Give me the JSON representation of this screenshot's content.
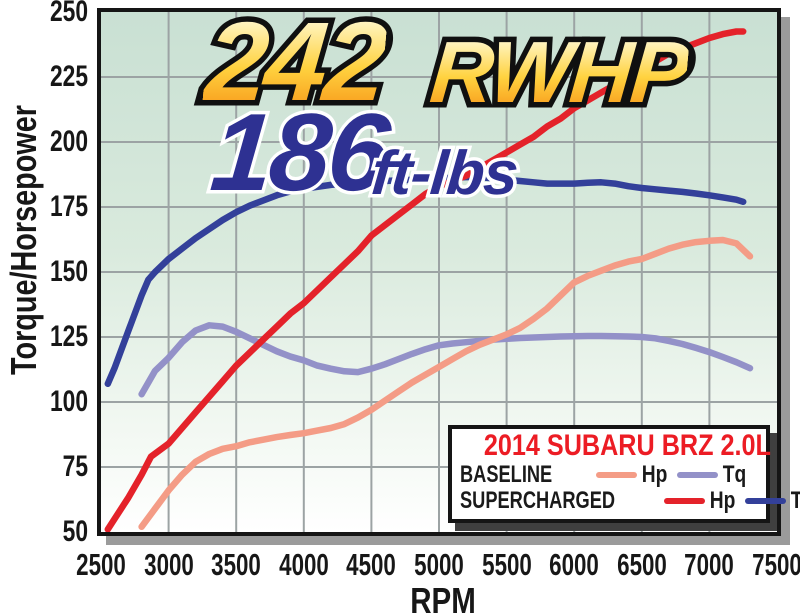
{
  "annotations": {
    "hp_value": "242",
    "hp_unit": "RWHP",
    "tq_value": "186",
    "tq_unit": "ft-lbs"
  },
  "axes": {
    "y_label": "Torque/Horsepower",
    "x_label": "RPM"
  },
  "legend": {
    "title": "2014 SUBARU BRZ 2.0L",
    "rows": [
      {
        "label": "BASELINE",
        "hp_label": "Hp",
        "tq_label": "Tq",
        "hp_series": "baseline_hp",
        "tq_series": "baseline_tq"
      },
      {
        "label": "SUPERCHARGED",
        "hp_label": "Hp",
        "tq_label": "Tq",
        "hp_series": "supercharged_hp",
        "tq_series": "supercharged_tq"
      }
    ]
  },
  "colors": {
    "baseline_hp": "#f49c86",
    "baseline_tq": "#9391c8",
    "supercharged_hp": "#e4222a",
    "supercharged_tq": "#33409a",
    "legend_title": "#ec1c24",
    "grid": "#9ca3a4",
    "plot_border": "#151515",
    "plot_shadow": "#9b9b9b",
    "plot_bg_top": "#c9e0d3",
    "plot_bg_bottom": "#ffffff",
    "hp_title_gradient": [
      "#fffdee",
      "#ffd23f",
      "#f7941d"
    ],
    "tq_title_color": "#2e3192"
  },
  "chart_data": {
    "type": "line",
    "title": "242 RWHP / 186 ft-lbs",
    "xlabel": "RPM",
    "ylabel": "Torque/Horsepower",
    "xlim": [
      2500,
      7500
    ],
    "ylim": [
      50,
      250
    ],
    "x_ticks": [
      2500,
      3000,
      3500,
      4000,
      4500,
      5000,
      5500,
      6000,
      6500,
      7000,
      7500
    ],
    "y_ticks": [
      50,
      75,
      100,
      125,
      150,
      175,
      200,
      225,
      250
    ],
    "x_gridlines": [
      3000,
      3500,
      4000,
      4500,
      5000,
      5500,
      6000,
      6500,
      7000
    ],
    "y_gridlines": [
      75,
      100,
      125,
      150,
      175,
      200,
      225
    ],
    "grid": true,
    "legend_position": "lower right",
    "annotations": [
      "242 RWHP",
      "186 ft-lbs"
    ],
    "series": [
      {
        "key": "baseline_tq",
        "name": "Baseline Tq",
        "points": [
          [
            2800,
            103
          ],
          [
            2900,
            112
          ],
          [
            3000,
            117
          ],
          [
            3100,
            123
          ],
          [
            3200,
            127.5
          ],
          [
            3300,
            129.5
          ],
          [
            3400,
            129
          ],
          [
            3500,
            127
          ],
          [
            3600,
            124.5
          ],
          [
            3700,
            122
          ],
          [
            3800,
            119.5
          ],
          [
            3900,
            117.5
          ],
          [
            4000,
            116
          ],
          [
            4100,
            114
          ],
          [
            4200,
            112.8
          ],
          [
            4300,
            111.8
          ],
          [
            4400,
            111.5
          ],
          [
            4500,
            112.8
          ],
          [
            4600,
            114.5
          ],
          [
            4700,
            116.5
          ],
          [
            4800,
            118.5
          ],
          [
            4900,
            120.3
          ],
          [
            5000,
            121.8
          ],
          [
            5100,
            122.5
          ],
          [
            5200,
            123
          ],
          [
            5300,
            123.5
          ],
          [
            5400,
            124
          ],
          [
            5500,
            124.3
          ],
          [
            5600,
            124.6
          ],
          [
            5700,
            124.8
          ],
          [
            5800,
            125
          ],
          [
            5900,
            125.2
          ],
          [
            6000,
            125.3
          ],
          [
            6100,
            125.4
          ],
          [
            6200,
            125.4
          ],
          [
            6300,
            125.3
          ],
          [
            6400,
            125.2
          ],
          [
            6500,
            125
          ],
          [
            6600,
            124.5
          ],
          [
            6700,
            123.5
          ],
          [
            6800,
            122.3
          ],
          [
            6900,
            120.8
          ],
          [
            7000,
            119.2
          ],
          [
            7100,
            117.3
          ],
          [
            7200,
            115.3
          ],
          [
            7300,
            113
          ]
        ]
      },
      {
        "key": "supercharged_tq",
        "name": "Supercharged Tq",
        "points": [
          [
            2550,
            107
          ],
          [
            2600,
            113
          ],
          [
            2700,
            127
          ],
          [
            2800,
            141
          ],
          [
            2850,
            147
          ],
          [
            2900,
            150
          ],
          [
            3000,
            155
          ],
          [
            3100,
            159
          ],
          [
            3200,
            163
          ],
          [
            3300,
            166.5
          ],
          [
            3400,
            170
          ],
          [
            3500,
            173
          ],
          [
            3600,
            175.5
          ],
          [
            3700,
            177.5
          ],
          [
            3800,
            179.5
          ],
          [
            3900,
            181
          ],
          [
            4000,
            182
          ],
          [
            4200,
            183.5
          ],
          [
            4400,
            184.5
          ],
          [
            4600,
            185
          ],
          [
            4800,
            185.5
          ],
          [
            5000,
            186
          ],
          [
            5200,
            186.5
          ],
          [
            5300,
            186.5
          ],
          [
            5400,
            186
          ],
          [
            5500,
            185.5
          ],
          [
            5600,
            185
          ],
          [
            5700,
            184.5
          ],
          [
            5800,
            184
          ],
          [
            5900,
            184
          ],
          [
            6000,
            184
          ],
          [
            6100,
            184.3
          ],
          [
            6200,
            184.5
          ],
          [
            6300,
            184
          ],
          [
            6400,
            183
          ],
          [
            6500,
            182.3
          ],
          [
            6600,
            181.8
          ],
          [
            6700,
            181.3
          ],
          [
            6800,
            180.8
          ],
          [
            6900,
            180.2
          ],
          [
            7000,
            179.5
          ],
          [
            7100,
            178.7
          ],
          [
            7200,
            177.8
          ],
          [
            7250,
            177
          ]
        ]
      },
      {
        "key": "baseline_hp",
        "name": "Baseline Hp",
        "points": [
          [
            2800,
            52
          ],
          [
            2900,
            59
          ],
          [
            3000,
            66
          ],
          [
            3100,
            72
          ],
          [
            3200,
            77
          ],
          [
            3300,
            80
          ],
          [
            3400,
            82
          ],
          [
            3500,
            83
          ],
          [
            3600,
            84.5
          ],
          [
            3700,
            85.5
          ],
          [
            3800,
            86.5
          ],
          [
            3900,
            87.3
          ],
          [
            4000,
            88
          ],
          [
            4100,
            89
          ],
          [
            4200,
            90
          ],
          [
            4300,
            91.5
          ],
          [
            4400,
            94
          ],
          [
            4500,
            97
          ],
          [
            4600,
            100.5
          ],
          [
            4700,
            104
          ],
          [
            4800,
            107.5
          ],
          [
            4900,
            110.5
          ],
          [
            5000,
            113.5
          ],
          [
            5100,
            116.5
          ],
          [
            5200,
            119.5
          ],
          [
            5300,
            122
          ],
          [
            5400,
            124
          ],
          [
            5500,
            126
          ],
          [
            5600,
            128.5
          ],
          [
            5700,
            132
          ],
          [
            5800,
            136
          ],
          [
            5900,
            141
          ],
          [
            6000,
            146
          ],
          [
            6100,
            148.5
          ],
          [
            6200,
            150.5
          ],
          [
            6300,
            152.5
          ],
          [
            6400,
            154
          ],
          [
            6500,
            155
          ],
          [
            6600,
            157
          ],
          [
            6700,
            159
          ],
          [
            6800,
            160.5
          ],
          [
            6900,
            161.5
          ],
          [
            7000,
            162
          ],
          [
            7100,
            162.3
          ],
          [
            7200,
            161
          ],
          [
            7300,
            156
          ]
        ]
      },
      {
        "key": "supercharged_hp",
        "name": "Supercharged Hp",
        "points": [
          [
            2550,
            51
          ],
          [
            2600,
            55
          ],
          [
            2700,
            63
          ],
          [
            2800,
            72
          ],
          [
            2870,
            79
          ],
          [
            3000,
            84
          ],
          [
            3100,
            90
          ],
          [
            3200,
            96
          ],
          [
            3300,
            102
          ],
          [
            3400,
            108
          ],
          [
            3500,
            114
          ],
          [
            3600,
            119
          ],
          [
            3700,
            124
          ],
          [
            3800,
            129
          ],
          [
            3900,
            134
          ],
          [
            4000,
            138
          ],
          [
            4100,
            143
          ],
          [
            4200,
            148
          ],
          [
            4300,
            153
          ],
          [
            4400,
            158
          ],
          [
            4500,
            164
          ],
          [
            4600,
            168
          ],
          [
            4700,
            172
          ],
          [
            4800,
            176
          ],
          [
            4900,
            180
          ],
          [
            5000,
            183
          ],
          [
            5100,
            185
          ],
          [
            5200,
            187
          ],
          [
            5300,
            190
          ],
          [
            5400,
            193
          ],
          [
            5500,
            196
          ],
          [
            5600,
            199
          ],
          [
            5700,
            202
          ],
          [
            5800,
            206
          ],
          [
            5900,
            209
          ],
          [
            6000,
            213
          ],
          [
            6100,
            216
          ],
          [
            6200,
            219
          ],
          [
            6300,
            222
          ],
          [
            6400,
            225
          ],
          [
            6500,
            228
          ],
          [
            6600,
            231
          ],
          [
            6700,
            234
          ],
          [
            6800,
            236
          ],
          [
            6900,
            238
          ],
          [
            7000,
            240
          ],
          [
            7100,
            241.5
          ],
          [
            7200,
            242.5
          ],
          [
            7250,
            242.5
          ]
        ]
      }
    ]
  }
}
